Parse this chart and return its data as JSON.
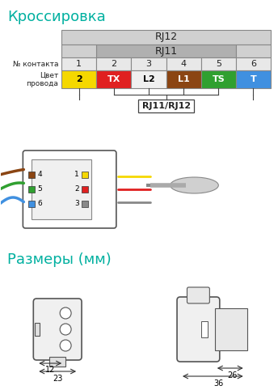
{
  "title_crossover": "Кроссировка",
  "title_sizes": "Размеры (мм)",
  "title_color": "#00b0a0",
  "bg_color": "#ffffff",
  "rj12_label": "RJ12",
  "rj11_label": "RJ11",
  "rj11rj12_label": "RJ11/RJ12",
  "contact_label": "№ контакта",
  "wire_label": "Цвет\nпровода",
  "contacts": [
    "1",
    "2",
    "3",
    "4",
    "5",
    "6"
  ],
  "wire_labels": [
    "2",
    "TX",
    "L2",
    "L1",
    "TS",
    "T"
  ],
  "wire_colors": [
    "#f5d800",
    "#e02020",
    "#f0f0f0",
    "#8B4513",
    "#30a030",
    "#4090e0"
  ],
  "wire_text_colors": [
    "#000000",
    "#ffffff",
    "#000000",
    "#ffffff",
    "#ffffff",
    "#ffffff"
  ],
  "rj12_color": "#d0d0d0",
  "rj11_color": "#b0b0b0",
  "header_color": "#e8e8e8",
  "dim1": "12",
  "dim2": "23",
  "dim3": "26",
  "dim4": "36"
}
